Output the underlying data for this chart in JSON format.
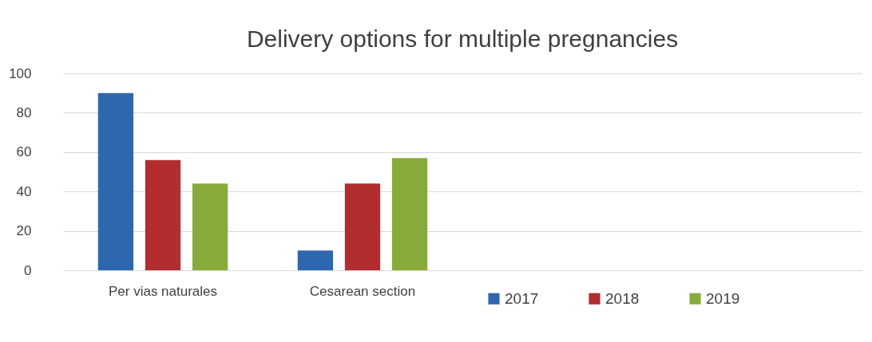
{
  "chart_data": {
    "type": "bar",
    "title": "Delivery options for multiple pregnancies",
    "categories": [
      "Per vias naturales",
      "Cesarean section",
      null,
      null
    ],
    "series": [
      {
        "name": "2017",
        "color": "#2e67ae",
        "values": [
          90,
          10,
          null,
          null
        ]
      },
      {
        "name": "2018",
        "color": "#b22d2d",
        "values": [
          56,
          44,
          null,
          null
        ]
      },
      {
        "name": "2019",
        "color": "#87ab3a",
        "values": [
          44,
          57,
          null,
          null
        ]
      }
    ],
    "ylim": [
      0,
      100
    ],
    "yticks": [
      0,
      20,
      40,
      60,
      80,
      100
    ],
    "grid": "y",
    "legend": "bottom right"
  }
}
